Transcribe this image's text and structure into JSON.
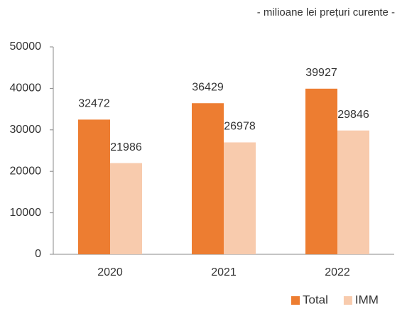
{
  "chart_data": {
    "type": "bar",
    "subtitle": "- milioane lei prețuri curente -",
    "categories": [
      "2020",
      "2021",
      "2022"
    ],
    "series": [
      {
        "name": "Total",
        "color": "#ed7d31",
        "values": [
          32472,
          36429,
          39927
        ]
      },
      {
        "name": "IMM",
        "color": "#f8cbad",
        "values": [
          21986,
          26978,
          29846
        ]
      }
    ],
    "ylim": [
      0,
      50000
    ],
    "yticks": [
      0,
      10000,
      20000,
      30000,
      40000,
      50000
    ],
    "legend": "bottom-right"
  }
}
